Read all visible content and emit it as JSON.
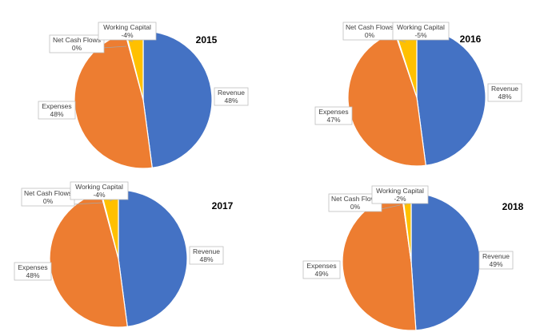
{
  "chart_data": [
    {
      "type": "pie",
      "title": "2015",
      "slices": [
        {
          "name": "Revenue",
          "value": 48,
          "pct_label": "48%",
          "color": "#4472C4"
        },
        {
          "name": "Expenses",
          "value": 48,
          "pct_label": "48%",
          "color": "#ED7D31"
        },
        {
          "name": "Net Cash Flows",
          "value": 0.2,
          "pct_label": "0%",
          "color": "#A5A5A5"
        },
        {
          "name": "Working Capital",
          "value": 4,
          "pct_label": "-4%",
          "color": "#FFC000"
        }
      ]
    },
    {
      "type": "pie",
      "title": "2016",
      "slices": [
        {
          "name": "Revenue",
          "value": 48,
          "pct_label": "48%",
          "color": "#4472C4"
        },
        {
          "name": "Expenses",
          "value": 47,
          "pct_label": "47%",
          "color": "#ED7D31"
        },
        {
          "name": "Net Cash Flows",
          "value": 0.2,
          "pct_label": "0%",
          "color": "#A5A5A5"
        },
        {
          "name": "Working Capital",
          "value": 5,
          "pct_label": "-5%",
          "color": "#FFC000"
        }
      ]
    },
    {
      "type": "pie",
      "title": "2017",
      "slices": [
        {
          "name": "Revenue",
          "value": 48,
          "pct_label": "48%",
          "color": "#4472C4"
        },
        {
          "name": "Expenses",
          "value": 48,
          "pct_label": "48%",
          "color": "#ED7D31"
        },
        {
          "name": "Net Cash Flows",
          "value": 0.2,
          "pct_label": "0%",
          "color": "#A5A5A5"
        },
        {
          "name": "Working Capital",
          "value": 4,
          "pct_label": "-4%",
          "color": "#FFC000"
        }
      ]
    },
    {
      "type": "pie",
      "title": "2018",
      "slices": [
        {
          "name": "Revenue",
          "value": 49,
          "pct_label": "49%",
          "color": "#4472C4"
        },
        {
          "name": "Expenses",
          "value": 49,
          "pct_label": "49%",
          "color": "#ED7D31"
        },
        {
          "name": "Net Cash Flows",
          "value": 0.2,
          "pct_label": "0%",
          "color": "#A5A5A5"
        },
        {
          "name": "Working Capital",
          "value": 2,
          "pct_label": "-2%",
          "color": "#FFC000"
        }
      ]
    }
  ]
}
